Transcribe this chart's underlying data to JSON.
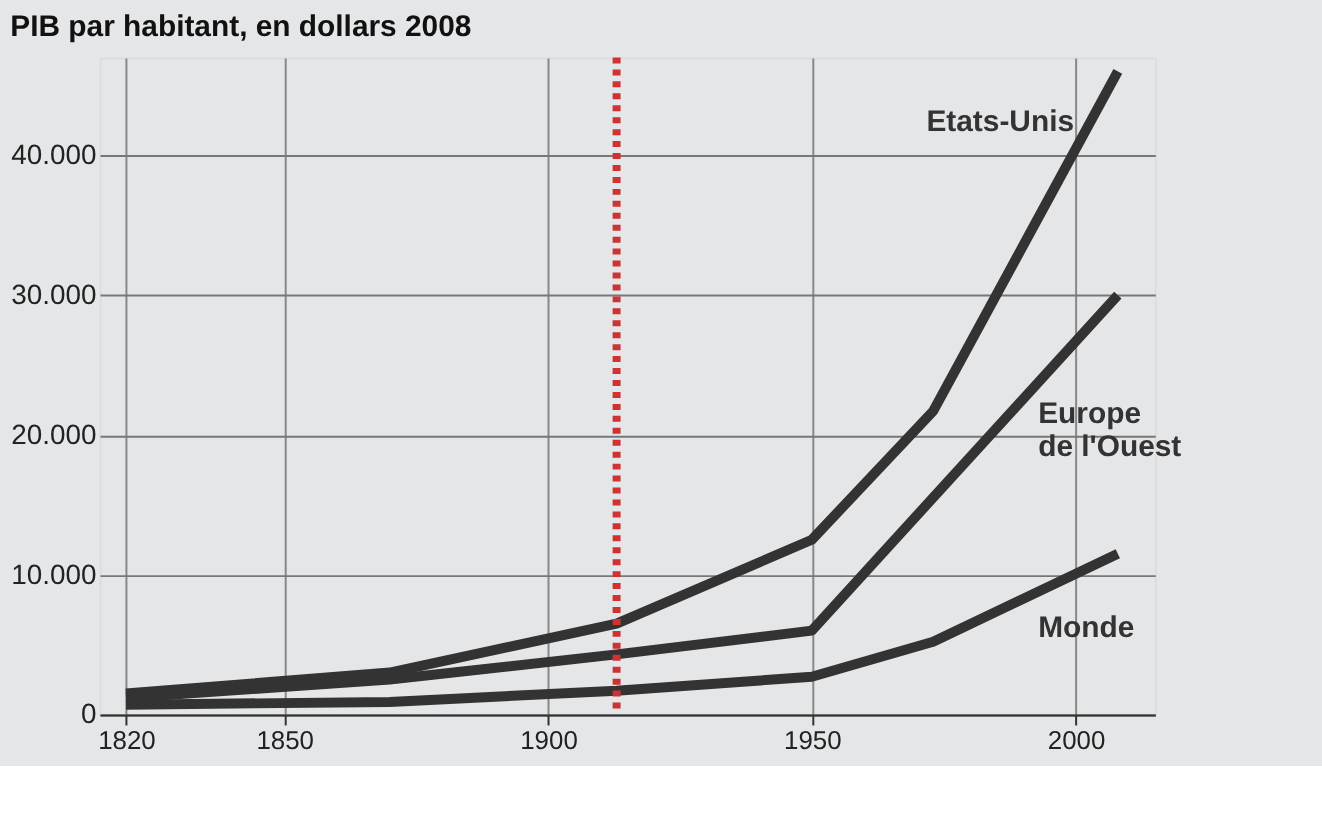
{
  "chart_data": {
    "type": "line",
    "title": "PIB par habitant, en dollars 2008",
    "xlim": [
      1815,
      2015
    ],
    "xticks": [
      1820,
      1850,
      1900,
      1950,
      2000
    ],
    "ylim": [
      0,
      47000
    ],
    "yticks": [
      {
        "value": 0,
        "label": "0"
      },
      {
        "value": 10000,
        "label": "10.000"
      },
      {
        "value": 20000,
        "label": "20.000"
      },
      {
        "value": 30000,
        "label": "30.000"
      },
      {
        "value": 40000,
        "label": "40.000"
      }
    ],
    "grid": true,
    "line_style": "solid",
    "marker": "none",
    "series": [
      {
        "name": "Etats-Unis",
        "color": "#333333",
        "x": [
          1820,
          1870,
          1913,
          1950,
          1973,
          2008
        ],
        "values": [
          1500,
          3000,
          6500,
          12500,
          21700,
          46000
        ]
      },
      {
        "name": "Europe\nde l'Ouest",
        "color": "#333333",
        "x": [
          1820,
          1870,
          1913,
          1950,
          2008
        ],
        "values": [
          1200,
          2500,
          4300,
          6000,
          30000
        ]
      },
      {
        "name": "Monde",
        "color": "#333333",
        "x": [
          1820,
          1870,
          1913,
          1950,
          1973,
          2008
        ],
        "values": [
          700,
          900,
          1700,
          2700,
          5200,
          11500
        ]
      }
    ],
    "ref_lines": [
      {
        "axis": "x",
        "value": 1913,
        "color": "#cc3333",
        "line_style": "dotted"
      }
    ]
  }
}
